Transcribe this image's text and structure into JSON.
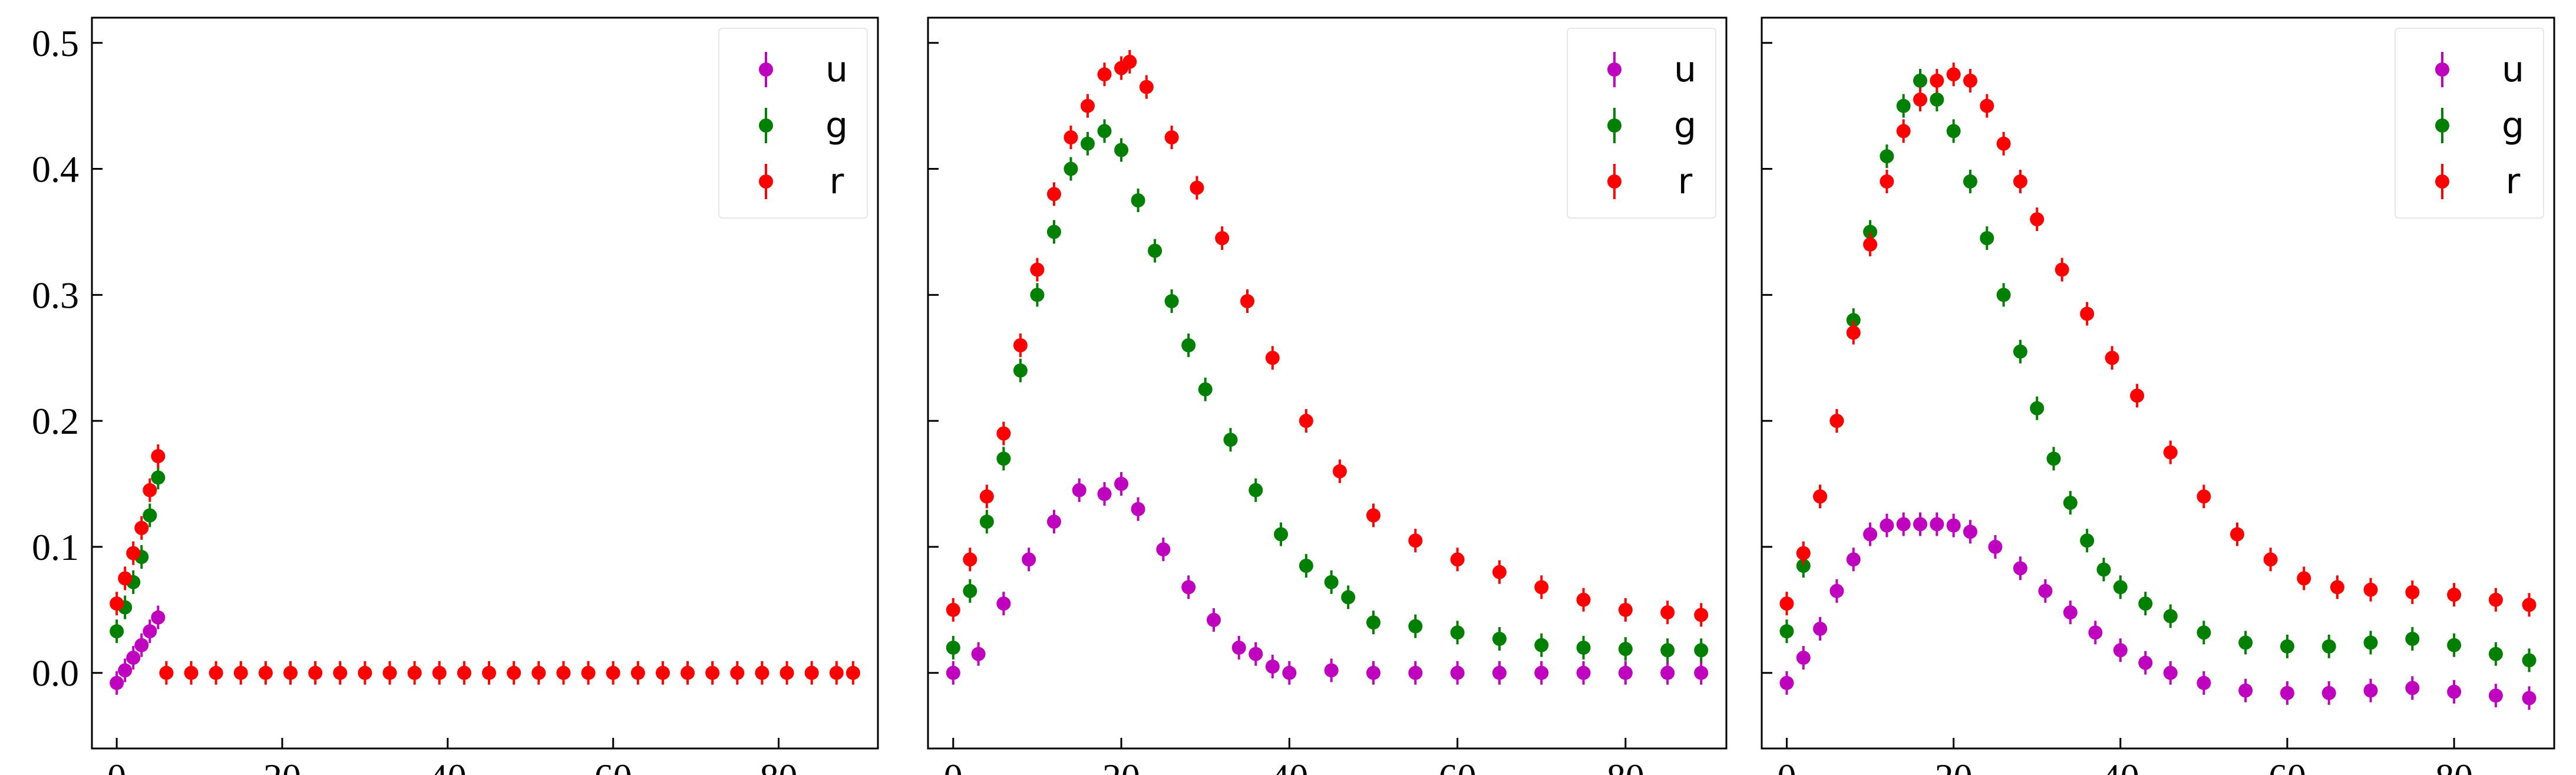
{
  "chart_data": [
    {
      "type": "scatter",
      "title": "",
      "xlabel": "",
      "ylabel": "",
      "xlim": [
        -3,
        92
      ],
      "ylim": [
        -0.06,
        0.52
      ],
      "x_ticks": [
        0,
        20,
        40,
        60,
        80
      ],
      "y_ticks": [
        0.0,
        0.1,
        0.2,
        0.3,
        0.4,
        0.5
      ],
      "y_tick_labels": [
        "0.0",
        "0.1",
        "0.2",
        "0.3",
        "0.4",
        "0.5"
      ],
      "legend_position": "top-right",
      "error_bars": true,
      "series": [
        {
          "name": "u",
          "color": "#bf00bf",
          "x": [
            0,
            1,
            2,
            3,
            4,
            5
          ],
          "y": [
            -0.008,
            0.002,
            0.012,
            0.022,
            0.033,
            0.044
          ]
        },
        {
          "name": "g",
          "color": "#008000",
          "x": [
            0,
            1,
            2,
            3,
            4,
            5
          ],
          "y": [
            0.033,
            0.052,
            0.072,
            0.092,
            0.125,
            0.155
          ]
        },
        {
          "name": "r",
          "color": "#ff0000",
          "x": [
            0,
            1,
            2,
            3,
            4,
            5,
            6,
            9,
            12,
            15,
            18,
            21,
            24,
            27,
            30,
            33,
            36,
            39,
            42,
            45,
            48,
            51,
            54,
            57,
            60,
            63,
            66,
            69,
            72,
            75,
            78,
            81,
            84,
            87,
            89
          ],
          "y": [
            0.055,
            0.075,
            0.095,
            0.115,
            0.145,
            0.172,
            0.0,
            0.0,
            0.0,
            0.0,
            0.0,
            0.0,
            0.0,
            0.0,
            0.0,
            0.0,
            0.0,
            0.0,
            0.0,
            0.0,
            0.0,
            0.0,
            0.0,
            0.0,
            0.0,
            0.0,
            0.0,
            0.0,
            0.0,
            0.0,
            0.0,
            0.0,
            0.0,
            0.0,
            0.0
          ]
        }
      ]
    },
    {
      "type": "scatter",
      "title": "",
      "xlabel": "",
      "ylabel": "",
      "xlim": [
        -3,
        92
      ],
      "ylim": [
        -0.06,
        0.52
      ],
      "x_ticks": [
        0,
        20,
        40,
        60,
        80
      ],
      "y_ticks": [
        0.0,
        0.1,
        0.2,
        0.3,
        0.4,
        0.5
      ],
      "legend_position": "top-right",
      "error_bars": true,
      "series": [
        {
          "name": "u",
          "color": "#bf00bf",
          "x": [
            0,
            3,
            6,
            9,
            12,
            15,
            18,
            20,
            22,
            25,
            28,
            31,
            34,
            36,
            38,
            40,
            45,
            50,
            55,
            60,
            65,
            70,
            75,
            80,
            85,
            89
          ],
          "y": [
            0.0,
            0.015,
            0.055,
            0.09,
            0.12,
            0.145,
            0.142,
            0.15,
            0.13,
            0.098,
            0.068,
            0.042,
            0.02,
            0.015,
            0.005,
            0.0,
            0.002,
            0.0,
            0.0,
            0.0,
            0.0,
            0.0,
            0.0,
            0.0,
            0.0,
            0.0
          ]
        },
        {
          "name": "g",
          "color": "#008000",
          "x": [
            0,
            2,
            4,
            6,
            8,
            10,
            12,
            14,
            16,
            18,
            20,
            22,
            24,
            26,
            28,
            30,
            33,
            36,
            39,
            42,
            45,
            47,
            50,
            55,
            60,
            65,
            70,
            75,
            80,
            85,
            89
          ],
          "y": [
            0.02,
            0.065,
            0.12,
            0.17,
            0.24,
            0.3,
            0.35,
            0.4,
            0.42,
            0.43,
            0.415,
            0.375,
            0.335,
            0.295,
            0.26,
            0.225,
            0.185,
            0.145,
            0.11,
            0.085,
            0.072,
            0.06,
            0.04,
            0.037,
            0.032,
            0.027,
            0.022,
            0.02,
            0.019,
            0.018,
            0.018
          ]
        },
        {
          "name": "r",
          "color": "#ff0000",
          "x": [
            0,
            2,
            4,
            6,
            8,
            10,
            12,
            14,
            16,
            18,
            20,
            21,
            23,
            26,
            29,
            32,
            35,
            38,
            42,
            46,
            50,
            55,
            60,
            65,
            70,
            75,
            80,
            85,
            89
          ],
          "y": [
            0.05,
            0.09,
            0.14,
            0.19,
            0.26,
            0.32,
            0.38,
            0.425,
            0.45,
            0.475,
            0.48,
            0.485,
            0.465,
            0.425,
            0.385,
            0.345,
            0.295,
            0.25,
            0.2,
            0.16,
            0.125,
            0.105,
            0.09,
            0.08,
            0.068,
            0.058,
            0.05,
            0.048,
            0.046
          ]
        }
      ]
    },
    {
      "type": "scatter",
      "title": "",
      "xlabel": "",
      "ylabel": "",
      "xlim": [
        -3,
        92
      ],
      "ylim": [
        -0.06,
        0.52
      ],
      "x_ticks": [
        0,
        20,
        40,
        60,
        80
      ],
      "y_ticks": [
        0.0,
        0.1,
        0.2,
        0.3,
        0.4,
        0.5
      ],
      "legend_position": "top-right",
      "error_bars": true,
      "series": [
        {
          "name": "u",
          "color": "#bf00bf",
          "x": [
            0,
            2,
            4,
            6,
            8,
            10,
            12,
            14,
            16,
            18,
            20,
            22,
            25,
            28,
            31,
            34,
            37,
            40,
            43,
            46,
            50,
            55,
            60,
            65,
            70,
            75,
            80,
            85,
            89
          ],
          "y": [
            -0.008,
            0.012,
            0.035,
            0.065,
            0.09,
            0.11,
            0.117,
            0.118,
            0.118,
            0.118,
            0.117,
            0.112,
            0.1,
            0.083,
            0.065,
            0.048,
            0.032,
            0.018,
            0.008,
            0.0,
            -0.008,
            -0.014,
            -0.016,
            -0.016,
            -0.014,
            -0.012,
            -0.015,
            -0.018,
            -0.02
          ]
        },
        {
          "name": "g",
          "color": "#008000",
          "x": [
            0,
            2,
            4,
            6,
            8,
            10,
            12,
            14,
            16,
            18,
            20,
            22,
            24,
            26,
            28,
            30,
            32,
            34,
            36,
            38,
            40,
            43,
            46,
            50,
            55,
            60,
            65,
            70,
            75,
            80,
            85,
            89
          ],
          "y": [
            0.033,
            0.085,
            0.14,
            0.2,
            0.28,
            0.35,
            0.41,
            0.45,
            0.47,
            0.455,
            0.43,
            0.39,
            0.345,
            0.3,
            0.255,
            0.21,
            0.17,
            0.135,
            0.105,
            0.082,
            0.068,
            0.055,
            0.045,
            0.032,
            0.024,
            0.021,
            0.021,
            0.024,
            0.027,
            0.022,
            0.015,
            0.01
          ]
        },
        {
          "name": "r",
          "color": "#ff0000",
          "x": [
            0,
            2,
            4,
            6,
            8,
            10,
            12,
            14,
            16,
            18,
            20,
            22,
            24,
            26,
            28,
            30,
            33,
            36,
            39,
            42,
            46,
            50,
            54,
            58,
            62,
            66,
            70,
            75,
            80,
            85,
            89
          ],
          "y": [
            0.055,
            0.095,
            0.14,
            0.2,
            0.27,
            0.34,
            0.39,
            0.43,
            0.455,
            0.47,
            0.475,
            0.47,
            0.45,
            0.42,
            0.39,
            0.36,
            0.32,
            0.285,
            0.25,
            0.22,
            0.175,
            0.14,
            0.11,
            0.09,
            0.075,
            0.068,
            0.066,
            0.064,
            0.062,
            0.058,
            0.054
          ]
        }
      ]
    }
  ]
}
